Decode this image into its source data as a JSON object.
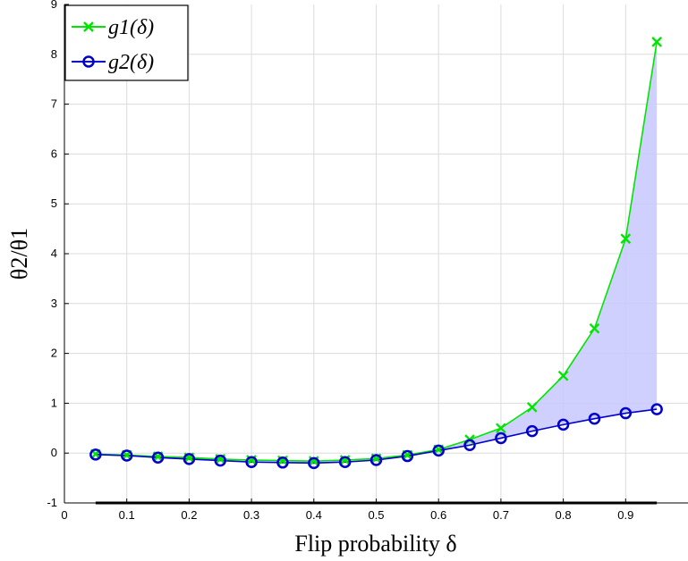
{
  "chart_data": {
    "type": "line",
    "xlabel": "Flip probability δ",
    "ylabel": "θ2/θ1",
    "xlim": [
      0,
      1
    ],
    "ylim": [
      -1,
      9
    ],
    "xticks": [
      "0",
      "0.1",
      "0.2",
      "0.3",
      "0.4",
      "0.5",
      "0.6",
      "0.7",
      "0.8",
      "0.9"
    ],
    "yticks": [
      "-1",
      "0",
      "1",
      "2",
      "3",
      "4",
      "5",
      "6",
      "7",
      "8",
      "9"
    ],
    "grid": true,
    "legend_position": "top-left",
    "shaded_between_series": true,
    "x": [
      0.05,
      0.1,
      0.15,
      0.2,
      0.25,
      0.3,
      0.35,
      0.4,
      0.45,
      0.5,
      0.55,
      0.6,
      0.65,
      0.7,
      0.75,
      0.8,
      0.85,
      0.9,
      0.95
    ],
    "series": [
      {
        "name": "g1(δ)",
        "color": "#00e600",
        "marker": "x",
        "values": [
          -0.02,
          -0.04,
          -0.07,
          -0.09,
          -0.12,
          -0.14,
          -0.15,
          -0.16,
          -0.14,
          -0.11,
          -0.04,
          0.07,
          0.27,
          0.5,
          0.92,
          1.55,
          2.5,
          4.3,
          8.25
        ]
      },
      {
        "name": "g2(δ)",
        "color": "#0000cc",
        "marker": "o",
        "values": [
          -0.03,
          -0.05,
          -0.09,
          -0.12,
          -0.15,
          -0.18,
          -0.19,
          -0.2,
          -0.18,
          -0.14,
          -0.06,
          0.05,
          0.16,
          0.3,
          0.44,
          0.57,
          0.69,
          0.8,
          0.88
        ]
      }
    ]
  }
}
